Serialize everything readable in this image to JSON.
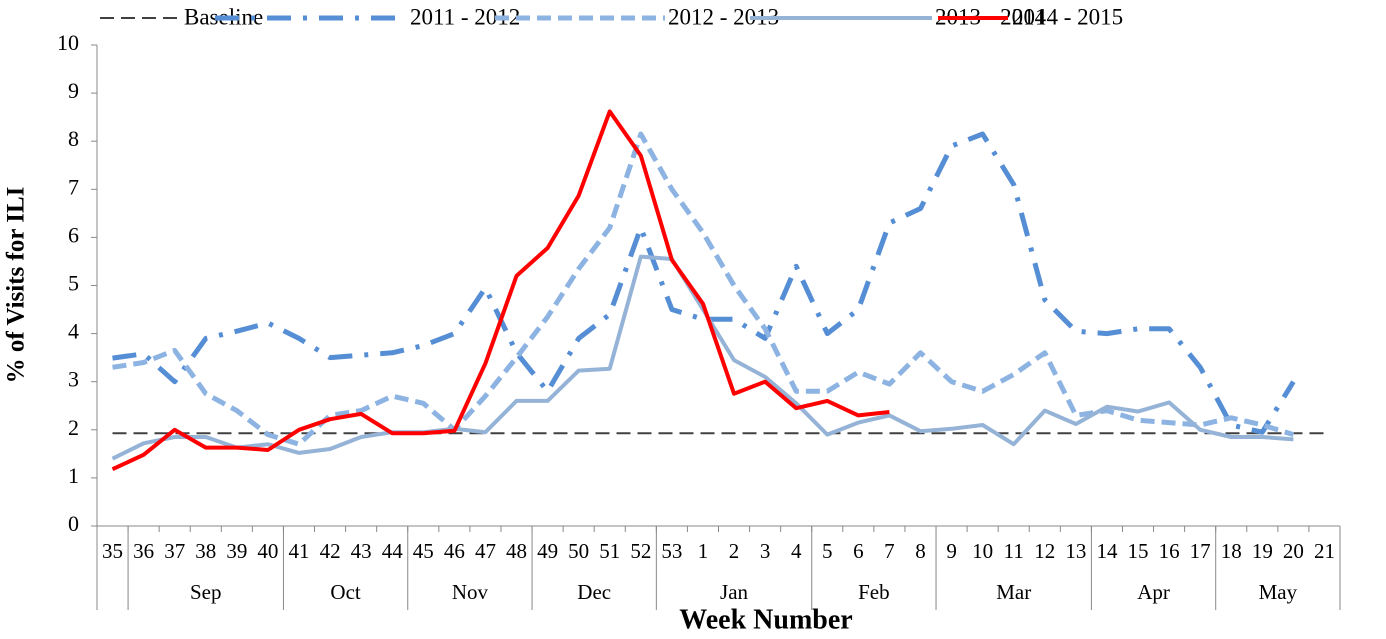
{
  "chart_data": {
    "type": "line",
    "x_label": "Week Number",
    "y_label": "% of Visits for ILI",
    "categories": [
      "35",
      "36",
      "37",
      "38",
      "39",
      "40",
      "41",
      "42",
      "43",
      "44",
      "45",
      "46",
      "47",
      "48",
      "49",
      "50",
      "51",
      "52",
      "53",
      "1",
      "2",
      "3",
      "4",
      "5",
      "6",
      "7",
      "8",
      "9",
      "10",
      "11",
      "12",
      "13",
      "14",
      "15",
      "16",
      "17",
      "18",
      "19",
      "20",
      "21"
    ],
    "groups": [
      {
        "label": null,
        "span": 1
      },
      {
        "label": "Sep",
        "span": 5
      },
      {
        "label": "Oct",
        "span": 4
      },
      {
        "label": "Nov",
        "span": 4
      },
      {
        "label": "Dec",
        "span": 4
      },
      {
        "label": "Jan",
        "span": 5
      },
      {
        "label": "Feb",
        "span": 4
      },
      {
        "label": "Mar",
        "span": 5
      },
      {
        "label": "Apr",
        "span": 4
      },
      {
        "label": "May",
        "span": 4
      }
    ],
    "ylim": [
      0,
      10
    ],
    "yticks": [
      0,
      1,
      2,
      3,
      4,
      5,
      6,
      7,
      8,
      9,
      10
    ],
    "legend": "top",
    "series": [
      {
        "name": "Baseline",
        "color": "#404040",
        "dash": "dashed",
        "width": 2,
        "values": [
          1.93,
          1.93,
          1.93,
          1.93,
          1.93,
          1.93,
          1.93,
          1.93,
          1.93,
          1.93,
          1.93,
          1.93,
          1.93,
          1.93,
          1.93,
          1.93,
          1.93,
          1.93,
          1.93,
          1.93,
          1.93,
          1.93,
          1.93,
          1.93,
          1.93,
          1.93,
          1.93,
          1.93,
          1.93,
          1.93,
          1.93,
          1.93,
          1.93,
          1.93,
          1.93,
          1.93,
          1.93,
          1.93,
          1.93,
          1.93
        ]
      },
      {
        "name": "2011 - 2012",
        "color": "#558ed5",
        "dash": "dashdot",
        "width": 5,
        "values": [
          3.49,
          3.58,
          3.0,
          3.9,
          4.05,
          4.22,
          3.9,
          3.5,
          3.55,
          3.6,
          3.75,
          4.0,
          4.95,
          3.6,
          2.8,
          3.9,
          4.4,
          6.2,
          4.5,
          4.3,
          4.3,
          3.9,
          5.4,
          4.0,
          4.5,
          6.3,
          6.6,
          7.9,
          8.15,
          7.1,
          4.7,
          4.05,
          4.0,
          4.1,
          4.1,
          3.3,
          2.1,
          1.95,
          3.0,
          null
        ]
      },
      {
        "name": "2012 - 2013",
        "color": "#8db3e2",
        "dash": "dashed",
        "width": 5,
        "values": [
          3.3,
          3.4,
          3.65,
          2.75,
          2.4,
          1.9,
          1.7,
          2.3,
          2.4,
          2.7,
          2.55,
          2.0,
          2.7,
          3.5,
          4.35,
          5.35,
          6.2,
          8.15,
          7.0,
          6.1,
          5.0,
          4.1,
          2.8,
          2.8,
          3.2,
          2.95,
          3.6,
          3.0,
          2.8,
          3.15,
          3.6,
          2.3,
          2.4,
          2.2,
          2.15,
          2.1,
          2.25,
          2.1,
          1.9,
          null
        ]
      },
      {
        "name": "2013 - 2014",
        "color": "#95b3d7",
        "dash": "solid",
        "width": 4,
        "values": [
          1.4,
          1.72,
          1.85,
          1.85,
          1.63,
          1.7,
          1.52,
          1.6,
          1.85,
          1.95,
          1.95,
          2.02,
          1.95,
          2.6,
          2.6,
          3.23,
          3.27,
          5.6,
          5.55,
          4.5,
          3.45,
          3.1,
          2.55,
          1.9,
          2.15,
          2.3,
          1.97,
          2.02,
          2.1,
          1.7,
          2.4,
          2.12,
          2.48,
          2.38,
          2.57,
          2.0,
          1.85,
          1.85,
          1.8,
          null
        ]
      },
      {
        "name": "2014 - 2015",
        "color": "#ff0000",
        "dash": "solid",
        "width": 4,
        "values": [
          1.18,
          1.48,
          2.0,
          1.63,
          1.63,
          1.58,
          2.0,
          2.22,
          2.33,
          1.93,
          1.93,
          1.98,
          3.38,
          5.2,
          5.78,
          6.87,
          8.62,
          7.7,
          5.53,
          4.62,
          2.75,
          3.0,
          2.45,
          2.6,
          2.3,
          2.37,
          null,
          null,
          null,
          null,
          null,
          null,
          null,
          null,
          null,
          null,
          null,
          null,
          null,
          null
        ]
      }
    ]
  }
}
